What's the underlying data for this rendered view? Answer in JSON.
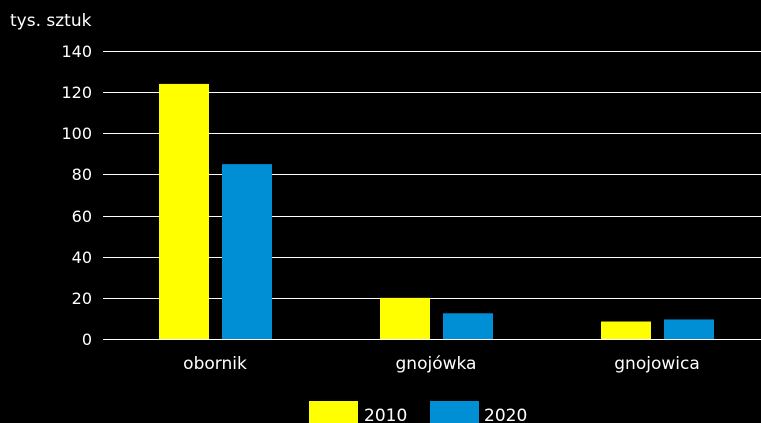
{
  "chart_data": {
    "type": "bar",
    "ylabel": "tys. sztuk",
    "ylim": [
      0,
      140
    ],
    "yticks": [
      0,
      20,
      40,
      60,
      80,
      100,
      120,
      140
    ],
    "grid": true,
    "legend_position": "bottom-center",
    "categories": [
      "obornik",
      "gnojówka",
      "gnojowica"
    ],
    "series": [
      {
        "name": "2010",
        "color": "#ffff00",
        "values": [
          124,
          20,
          8.5
        ]
      },
      {
        "name": "2020",
        "color": "#008fd5",
        "values": [
          85,
          12.5,
          9.5
        ]
      }
    ]
  }
}
